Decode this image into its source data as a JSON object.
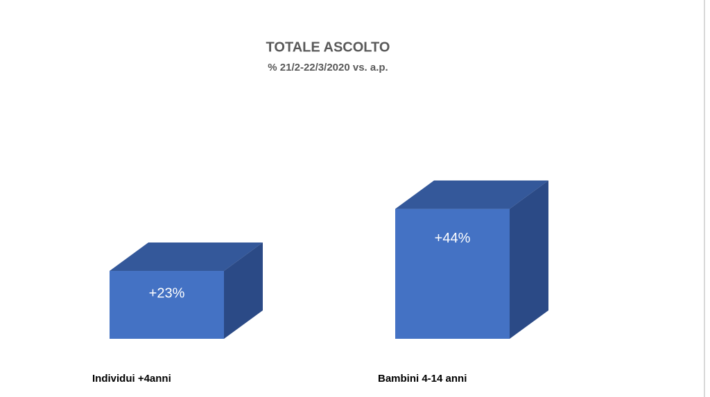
{
  "chart_data": {
    "type": "bar",
    "title": "TOTALE ASCOLTO",
    "subtitle": "% 21/2-22/3/2020 vs. a.p.",
    "categories": [
      "Individui +4anni",
      "Bambini 4-14 anni"
    ],
    "values": [
      23,
      44
    ],
    "value_labels": [
      "+23%",
      "+44%"
    ],
    "color": "#4472c4"
  }
}
